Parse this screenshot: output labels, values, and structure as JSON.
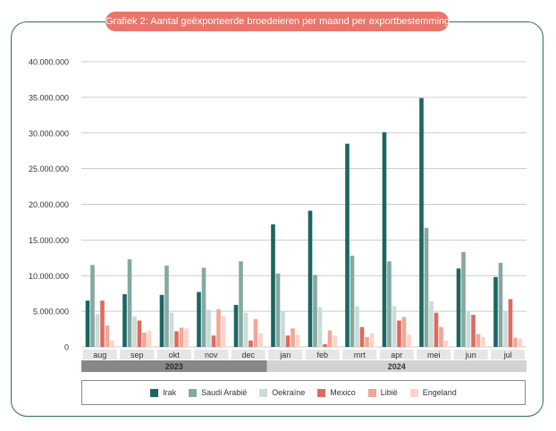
{
  "title": "Grafiek 2: Aantal geëxporteerde broedeieren per maand per exportbestemming",
  "chart_data": {
    "type": "bar",
    "title": "Grafiek 2: Aantal geëxporteerde broedeieren per maand per exportbestemming",
    "categories": [
      "aug",
      "sep",
      "okt",
      "nov",
      "dec",
      "jan",
      "feb",
      "mrt",
      "apr",
      "mei",
      "jun",
      "jul"
    ],
    "years": [
      {
        "label": "2023",
        "months": 5,
        "color": "#8a8685"
      },
      {
        "label": "2024",
        "months": 7,
        "color": "#d4d2d1"
      }
    ],
    "y_ticks": [
      "0",
      "5.000.000",
      "10.000.000",
      "15.000.000",
      "20.000.000",
      "25.000.000",
      "30.000.000",
      "35.000.000",
      "40.000.000"
    ],
    "ylim": [
      0,
      40000000
    ],
    "grid": true,
    "legend_position": "bottom",
    "series": [
      {
        "name": "Irak",
        "color": "#1a6660",
        "values": [
          6500000,
          7400000,
          7300000,
          7700000,
          5900000,
          17200000,
          19100000,
          28500000,
          30100000,
          34900000,
          11000000,
          9800000
        ]
      },
      {
        "name": "Saudi Arabië",
        "color": "#85a8a2",
        "values": [
          11500000,
          12300000,
          11400000,
          11100000,
          12000000,
          10300000,
          10100000,
          12800000,
          12000000,
          16700000,
          13300000,
          11800000
        ]
      },
      {
        "name": "Oekraïne",
        "color": "#c9dcd7",
        "values": [
          4600000,
          4300000,
          4800000,
          5200000,
          4800000,
          5000000,
          5600000,
          5700000,
          5700000,
          6400000,
          4900000,
          5000000
        ]
      },
      {
        "name": "Mexico",
        "color": "#e06a5c",
        "values": [
          6500000,
          3700000,
          2200000,
          1600000,
          900000,
          1600000,
          400000,
          2800000,
          3700000,
          4800000,
          4500000,
          6700000
        ]
      },
      {
        "name": "Libië",
        "color": "#f0a796",
        "values": [
          3000000,
          2000000,
          2700000,
          5300000,
          3900000,
          2600000,
          2300000,
          1400000,
          4200000,
          2800000,
          1800000,
          1300000
        ]
      },
      {
        "name": "Engeland",
        "color": "#fbd3c8",
        "values": [
          900000,
          2300000,
          2600000,
          4300000,
          1900000,
          1700000,
          1600000,
          1900000,
          1700000,
          900000,
          1400000,
          1200000
        ]
      }
    ]
  }
}
